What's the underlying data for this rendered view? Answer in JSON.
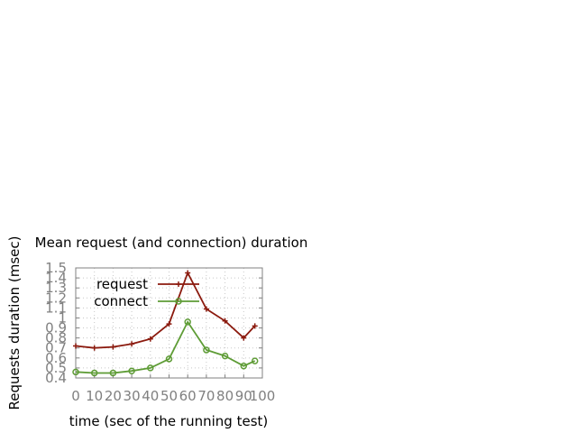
{
  "chart_data": {
    "type": "line",
    "title": "Mean request (and connection) duration",
    "xlabel": "time (sec of the running test)",
    "ylabel": "Requests duration (msec)",
    "xlim": [
      0,
      100
    ],
    "ylim": [
      0.4,
      1.5
    ],
    "xticks": [
      "0",
      "10",
      "20",
      "30",
      "40",
      "50",
      "60",
      "70",
      "80",
      "90",
      "100"
    ],
    "yticks": [
      "0.4",
      "0.5",
      "0.6",
      "0.7",
      "0.8",
      "0.9",
      "1",
      "1.1",
      "1.2",
      "1.3",
      "1.4",
      "1.5"
    ],
    "grid": true,
    "legend_position": "top-left",
    "series": [
      {
        "name": "request",
        "color": "#8b1a0e",
        "marker": "plus",
        "x": [
          0,
          10,
          20,
          30,
          40,
          50,
          60,
          70,
          80,
          90,
          96
        ],
        "y": [
          0.72,
          0.7,
          0.71,
          0.74,
          0.79,
          0.94,
          1.45,
          1.09,
          0.97,
          0.8,
          0.92
        ]
      },
      {
        "name": "connect",
        "color": "#5e9c36",
        "marker": "circle",
        "x": [
          0,
          10,
          20,
          30,
          40,
          50,
          60,
          70,
          80,
          90,
          96
        ],
        "y": [
          0.46,
          0.45,
          0.45,
          0.47,
          0.5,
          0.59,
          0.96,
          0.68,
          0.62,
          0.52,
          0.57
        ]
      }
    ]
  }
}
